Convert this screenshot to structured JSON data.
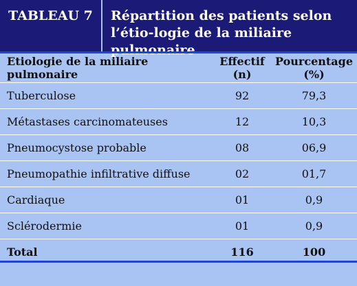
{
  "header": {
    "tag": "TABLEAU 7",
    "title": "Répartition des patients selon l’étio-logie de la miliaire pulmonaire"
  },
  "table": {
    "columns": [
      "Etiologie de la miliaire pulmonaire",
      "Effectif (n)",
      "Pourcentage (%)"
    ],
    "rows": [
      {
        "label": "Tuberculose",
        "n": "92",
        "pct": "79,3"
      },
      {
        "label": "Métastases carcinomateuses",
        "n": "12",
        "pct": "10,3"
      },
      {
        "label": "Pneumocystose probable",
        "n": "08",
        "pct": "06,9"
      },
      {
        "label": "Pneumopathie infiltrative diffuse",
        "n": "02",
        "pct": "01,7"
      },
      {
        "label": "Cardiaque",
        "n": "01",
        "pct": "0,9"
      },
      {
        "label": "Sclérodermie",
        "n": "01",
        "pct": "0,9"
      }
    ],
    "total": {
      "label": "Total",
      "n": "116",
      "pct": "100"
    }
  },
  "colors": {
    "header_bg": "#1c1a77",
    "body_bg": "#a9c3f3",
    "rule": "#1f48d2"
  }
}
